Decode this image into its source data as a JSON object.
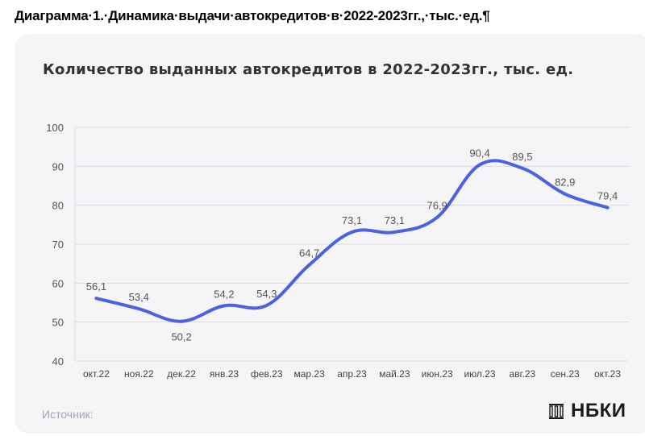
{
  "document": {
    "caption": "Диаграмма·1.·Динамика·выдачи·автокредитов·в·2022-2023гг.,·тыс.·ед.¶"
  },
  "card": {
    "source_label": "Источник:",
    "logo_text": "НБКИ",
    "logo_icon": "bank-columns-icon"
  },
  "colors": {
    "line": "#4a62e6",
    "grid": "#d9d9e3",
    "card_background": "#f5f5f7",
    "source_text": "#a3a3b8"
  },
  "chart_data": {
    "type": "line",
    "title": "Количество выданных автокредитов в 2022-2023гг., тыс. ед.",
    "xlabel": "",
    "ylabel": "",
    "categories": [
      "окт.22",
      "ноя.22",
      "дек.22",
      "янв.23",
      "фев.23",
      "мар.23",
      "апр.23",
      "май.23",
      "июн.23",
      "июл.23",
      "авг.23",
      "сен.23",
      "окт.23"
    ],
    "series": [
      {
        "values": [
          56.1,
          53.4,
          50.2,
          54.2,
          54.3,
          64.7,
          73.1,
          73.1,
          76.9,
          90.4,
          89.5,
          82.9,
          79.4
        ],
        "labels": [
          "56,1",
          "53,4",
          "50,2",
          "54,2",
          "54,3",
          "64,7",
          "73,1",
          "73,1",
          "76,9",
          "90,4",
          "89,5",
          "82,9",
          "79,4"
        ]
      }
    ],
    "ylim": [
      40,
      100
    ],
    "yticks": [
      40,
      50,
      60,
      70,
      80,
      90,
      100
    ],
    "grid": true,
    "legend": "none"
  }
}
